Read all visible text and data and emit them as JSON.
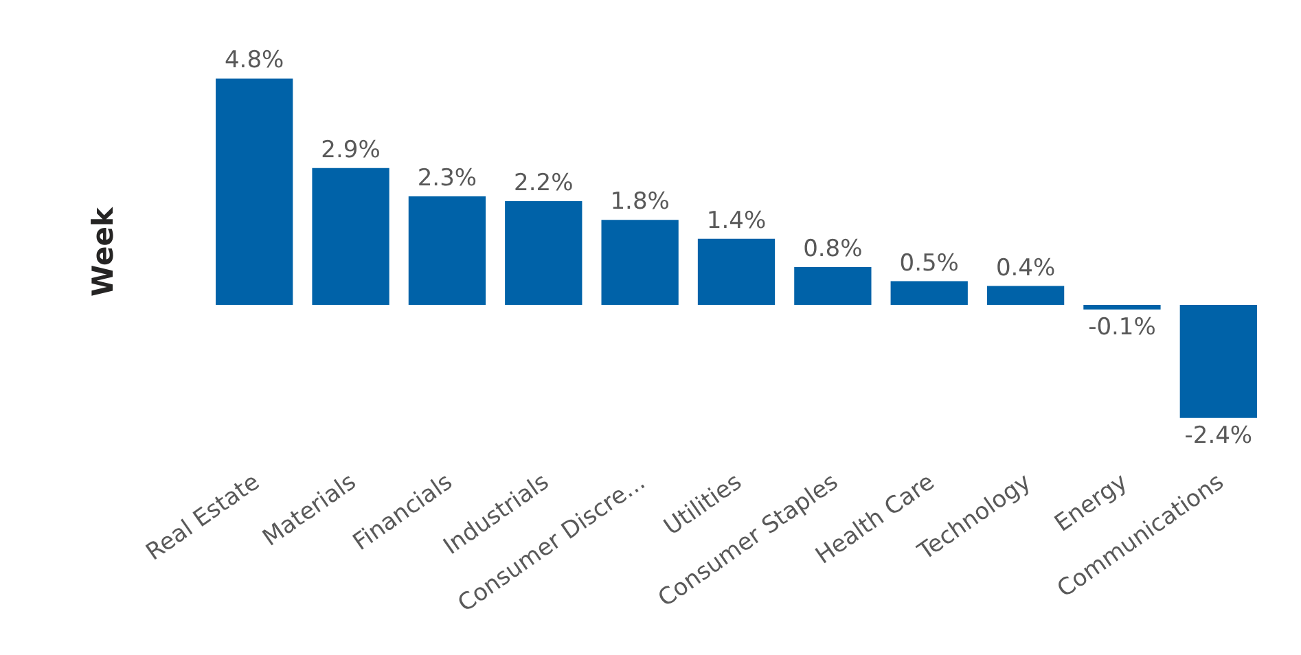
{
  "chart_data": {
    "type": "bar",
    "ylabel": "Week",
    "categories": [
      "Real Estate",
      "Materials",
      "Financials",
      "Industrials",
      "Consumer Discre...",
      "Utilities",
      "Consumer Staples",
      "Health Care",
      "Technology",
      "Energy",
      "Communications"
    ],
    "values": [
      4.8,
      2.9,
      2.3,
      2.2,
      1.8,
      1.4,
      0.8,
      0.5,
      0.4,
      -0.1,
      -2.4
    ],
    "value_labels": [
      "4.8%",
      "2.9%",
      "2.3%",
      "2.2%",
      "1.8%",
      "1.4%",
      "0.8%",
      "0.5%",
      "0.4%",
      "-0.1%",
      "-2.4%"
    ],
    "color": "#0062a8",
    "grid": false
  }
}
